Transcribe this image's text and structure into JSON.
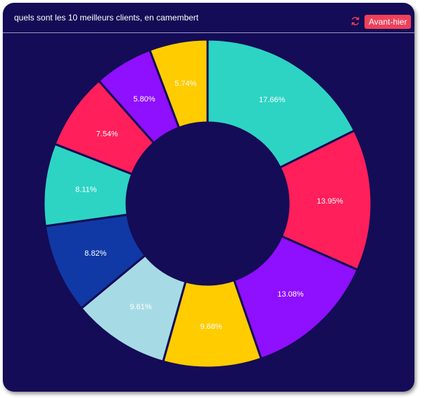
{
  "header": {
    "title": "quels sont les 10 meilleurs clients, en camembert",
    "refresh_icon": "refresh-icon",
    "button_label": "Avant-hier",
    "button_color": "#f0405a"
  },
  "colors": {
    "background": "#140c56",
    "slice_border": "#140c56"
  },
  "chart_data": {
    "type": "pie",
    "style": "donut",
    "title": "",
    "unit": "%",
    "legend": "none",
    "values": [
      17.66,
      13.95,
      13.08,
      9.68,
      9.61,
      8.82,
      8.11,
      7.54,
      5.8,
      5.74
    ],
    "labels": [
      "17.66%",
      "13.95%",
      "13.08%",
      "9.68%",
      "9.61%",
      "8.82%",
      "8.11%",
      "7.54%",
      "5.80%",
      "5.74%"
    ],
    "colors": [
      "#2dd4c3",
      "#ff1f5b",
      "#8f0fff",
      "#ffcc00",
      "#a6dbe6",
      "#1039a6",
      "#2dd4c3",
      "#ff1f5b",
      "#8f0fff",
      "#ffcc00"
    ]
  }
}
